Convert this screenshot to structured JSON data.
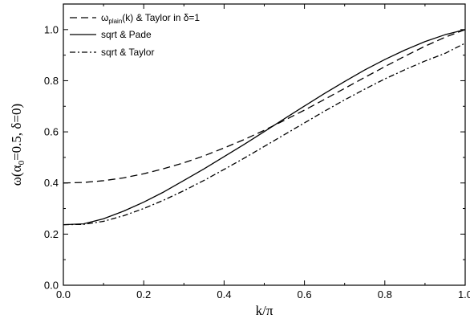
{
  "chart_data": {
    "type": "line",
    "xlabel": "k/π",
    "ylabel": "ω(α₀=0.5, δ=0)",
    "ylabel_parts": {
      "pre": "ω(α",
      "sub": "0",
      "post": "=0.5, δ=0)"
    },
    "xlim": [
      0.0,
      1.0
    ],
    "ylim": [
      0.0,
      1.1
    ],
    "xticks": [
      "0.0",
      "0.2",
      "0.4",
      "0.6",
      "0.8",
      "1.0"
    ],
    "yticks": [
      "0.0",
      "0.2",
      "0.4",
      "0.6",
      "0.8",
      "1.0"
    ],
    "grid": false,
    "legend_position": "top-left",
    "series": [
      {
        "name": "ωplain(k) & Taylor in δ=1",
        "name_parts": {
          "pre": "ω",
          "sub": "plain",
          "post": "(k) & Taylor in δ=1"
        },
        "style": "dashed",
        "x": [
          0.0,
          0.05,
          0.1,
          0.15,
          0.2,
          0.25,
          0.3,
          0.35,
          0.4,
          0.45,
          0.5,
          0.55,
          0.6,
          0.65,
          0.7,
          0.75,
          0.8,
          0.85,
          0.9,
          0.95,
          1.0
        ],
        "y": [
          0.4,
          0.402,
          0.409,
          0.42,
          0.436,
          0.456,
          0.479,
          0.506,
          0.537,
          0.57,
          0.606,
          0.645,
          0.685,
          0.727,
          0.77,
          0.813,
          0.855,
          0.896,
          0.935,
          0.97,
          1.0
        ]
      },
      {
        "name": "sqrt & Pade",
        "style": "solid",
        "x": [
          0.0,
          0.05,
          0.1,
          0.15,
          0.2,
          0.25,
          0.3,
          0.35,
          0.4,
          0.45,
          0.5,
          0.55,
          0.6,
          0.65,
          0.7,
          0.75,
          0.8,
          0.85,
          0.9,
          0.95,
          1.0
        ],
        "y": [
          0.237,
          0.24,
          0.26,
          0.29,
          0.325,
          0.365,
          0.41,
          0.455,
          0.503,
          0.551,
          0.601,
          0.651,
          0.701,
          0.75,
          0.797,
          0.842,
          0.883,
          0.92,
          0.953,
          0.98,
          1.0
        ]
      },
      {
        "name": "sqrt & Taylor",
        "style": "dashdot",
        "x": [
          0.0,
          0.05,
          0.1,
          0.15,
          0.2,
          0.25,
          0.3,
          0.35,
          0.4,
          0.45,
          0.5,
          0.55,
          0.6,
          0.65,
          0.7,
          0.75,
          0.8,
          0.85,
          0.9,
          0.95,
          1.0
        ],
        "y": [
          0.237,
          0.238,
          0.25,
          0.272,
          0.3,
          0.333,
          0.37,
          0.41,
          0.453,
          0.497,
          0.543,
          0.589,
          0.635,
          0.681,
          0.725,
          0.767,
          0.807,
          0.843,
          0.877,
          0.907,
          0.947
        ]
      }
    ]
  }
}
